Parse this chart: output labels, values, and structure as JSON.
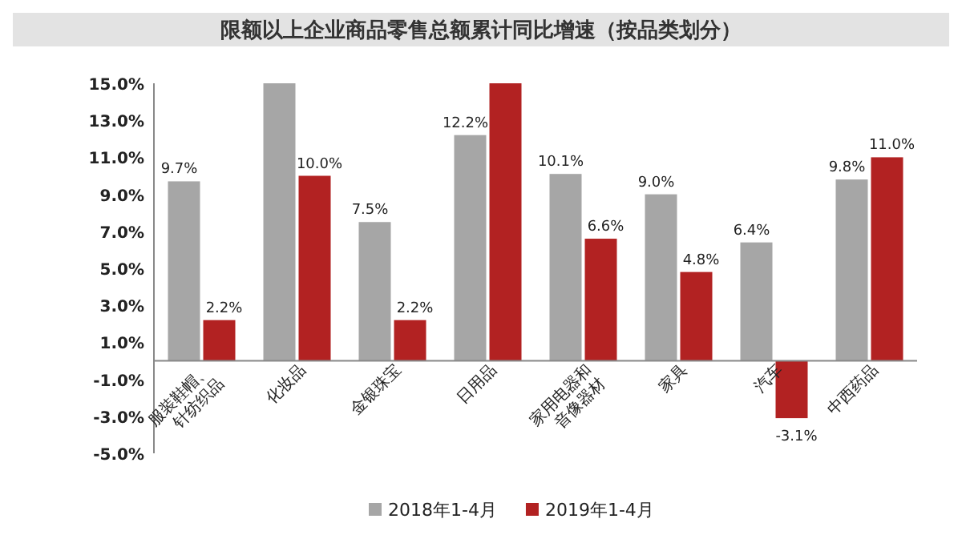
{
  "chart_data": {
    "type": "bar",
    "title": "限额以上企业商品零售总额累计同比增速（按品类划分）",
    "categories": [
      "服装鞋帽、针纺织品",
      "化妆品",
      "金银珠宝",
      "日用品",
      "家用电器和音像器材",
      "家具",
      "汽车",
      "中西药品"
    ],
    "series": [
      {
        "name": "2018年1-4月",
        "color": "#a6a6a6",
        "values": [
          9.7,
          15,
          7.5,
          12.2,
          10.1,
          9.0,
          6.4,
          9.8
        ],
        "value_labels": [
          "9.7%",
          null,
          "7.5%",
          "12.2%",
          "10.1%",
          "9.0%",
          "6.4%",
          "9.8%"
        ]
      },
      {
        "name": "2019年1-4月",
        "color": "#b22222",
        "values": [
          2.2,
          10.0,
          2.2,
          15,
          6.6,
          4.8,
          -3.1,
          11.0
        ],
        "value_labels": [
          "2.2%",
          "10.0%",
          "2.2%",
          null,
          "6.6%",
          "4.8%",
          "-3.1%",
          "11.0%"
        ]
      }
    ],
    "ylim": [
      -5,
      15
    ],
    "yticks": [
      {
        "value": -5,
        "label": "-5.0%"
      },
      {
        "value": -3,
        "label": "-3.0%"
      },
      {
        "value": -1,
        "label": "-1.0%"
      },
      {
        "value": 1,
        "label": "1.0%"
      },
      {
        "value": 3,
        "label": "3.0%"
      },
      {
        "value": 5,
        "label": "5.0%"
      },
      {
        "value": 7,
        "label": "7.0%"
      },
      {
        "value": 9,
        "label": "9.0%"
      },
      {
        "value": 11,
        "label": "11.0%"
      },
      {
        "value": 13,
        "label": "13.0%"
      },
      {
        "value": 15,
        "label": "15.0%"
      }
    ],
    "legend": "bottom"
  }
}
